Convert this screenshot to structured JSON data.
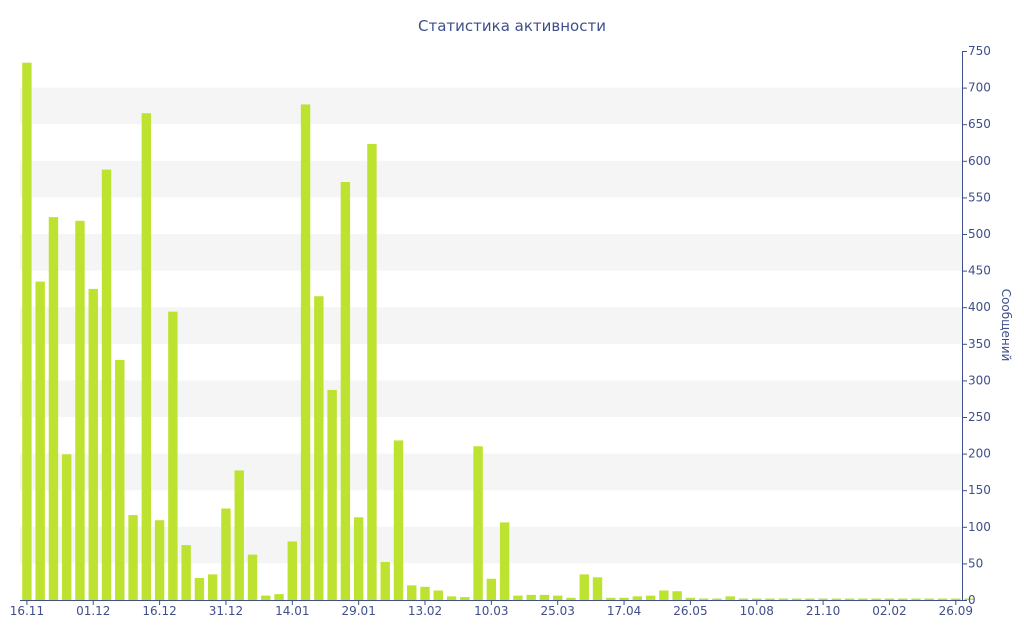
{
  "colors": {
    "bar": "#bde22f",
    "band": "#f5f5f5",
    "axis": "#3f4f8a",
    "text": "#3f4f8a"
  },
  "chart_data": {
    "type": "bar",
    "title": "Статистика активности",
    "xlabel": "",
    "ylabel": "Сообщений",
    "y_axis_side": "right",
    "ylim": [
      0,
      750
    ],
    "y_ticks": [
      0,
      50,
      100,
      150,
      200,
      250,
      300,
      350,
      400,
      450,
      500,
      550,
      600,
      650,
      700,
      750
    ],
    "grid": "alternating horizontal bands",
    "x_tick_labels": [
      {
        "label": "16.11",
        "index": 0
      },
      {
        "label": "01.12",
        "index": 5
      },
      {
        "label": "16.12",
        "index": 10
      },
      {
        "label": "31.12",
        "index": 15
      },
      {
        "label": "14.01",
        "index": 20
      },
      {
        "label": "29.01",
        "index": 25
      },
      {
        "label": "13.02",
        "index": 30
      },
      {
        "label": "10.03",
        "index": 35
      },
      {
        "label": "25.03",
        "index": 40
      },
      {
        "label": "17.04",
        "index": 45
      },
      {
        "label": "26.05",
        "index": 50
      },
      {
        "label": "10.08",
        "index": 55
      },
      {
        "label": "21.10",
        "index": 60
      },
      {
        "label": "02.02",
        "index": 65
      },
      {
        "label": "26.09",
        "index": 70
      }
    ],
    "values": [
      734,
      435,
      523,
      199,
      518,
      425,
      588,
      328,
      116,
      665,
      109,
      394,
      75,
      30,
      35,
      125,
      177,
      62,
      6,
      8,
      80,
      677,
      415,
      287,
      571,
      113,
      623,
      52,
      218,
      20,
      18,
      13,
      5,
      4,
      210,
      29,
      106,
      6,
      7,
      7,
      6,
      3,
      35,
      31,
      3,
      3,
      5,
      6,
      13,
      12,
      3,
      2,
      2,
      5,
      2,
      2,
      2,
      2,
      2,
      2,
      2,
      2,
      2,
      2,
      2,
      2,
      2,
      2,
      2,
      2,
      2,
      2
    ]
  }
}
